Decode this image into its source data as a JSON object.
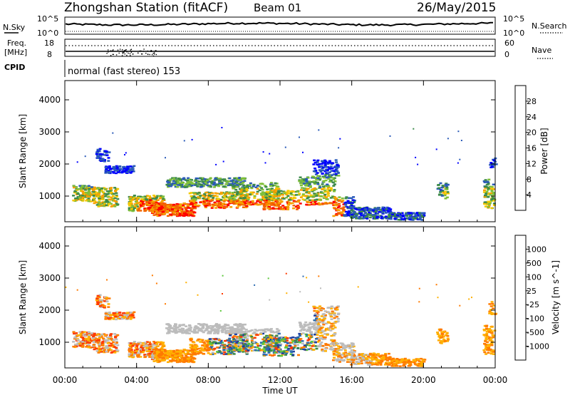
{
  "header": {
    "title": "Zhongshan Station (fitACF)",
    "beam": "Beam 01",
    "date": "26/May/2015"
  },
  "strip_nsky": {
    "left_label": "N.Sky",
    "right_label": "N.Search",
    "left_ticks": [
      "10^5",
      "10^0"
    ],
    "right_ticks": [
      "10^5",
      "10^0"
    ]
  },
  "strip_freq": {
    "left_label_1": "Freq.",
    "left_label_2": "[MHz]",
    "right_label": "Nave",
    "left_ticks": [
      "18",
      "8"
    ],
    "right_ticks": [
      "60",
      "0"
    ]
  },
  "strip_cpid": {
    "left_label": "CPID",
    "text": "normal (fast stereo) 153"
  },
  "x_axis": {
    "label": "Time UT",
    "ticks": [
      "00:00",
      "04:00",
      "08:00",
      "12:00",
      "16:00",
      "20:00",
      "00:00"
    ]
  },
  "chart_data": [
    {
      "type": "heatmap",
      "title": "",
      "xlabel": "Time UT",
      "ylabel": "Slant Range [km]",
      "y_ticks": [
        "1000",
        "2000",
        "3000",
        "4000"
      ],
      "ylim": [
        200,
        4600
      ],
      "colorbar": {
        "label": "Power [dB]",
        "ticks": [
          "4",
          "8",
          "12",
          "16",
          "20",
          "24",
          "28"
        ],
        "colors": [
          "#0000ff",
          "#2a5ab8",
          "#3c8a4a",
          "#7fbf3a",
          "#f2c800",
          "#f6a000",
          "#f26400",
          "#ff0000"
        ]
      }
    },
    {
      "type": "heatmap",
      "title": "",
      "xlabel": "Time UT",
      "ylabel": "Slant Range [km]",
      "y_ticks": [
        "1000",
        "2000",
        "3000",
        "4000"
      ],
      "ylim": [
        200,
        4600
      ],
      "colorbar": {
        "label": "Velocity [m s^-1]",
        "ticks": [
          "1000",
          "500",
          "100",
          "25",
          "-25",
          "-100",
          "-500",
          "-1000"
        ],
        "colors": [
          "#1f3fa0",
          "#2c6cb0",
          "#3c8a4a",
          "#5cc83c",
          "#bcbcbc",
          "#ffb000",
          "#ff7a00",
          "#ff3a00",
          "#ff0000"
        ]
      }
    }
  ]
}
